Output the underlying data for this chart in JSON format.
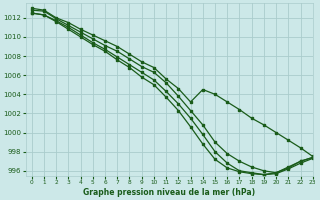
{
  "title": "Graphe pression niveau de la mer (hPa)",
  "background_color": "#cce8e8",
  "grid_color": "#aacccc",
  "line_color": "#1a5c1a",
  "xlim": [
    -0.5,
    23
  ],
  "ylim": [
    995.5,
    1013.5
  ],
  "yticks": [
    996,
    998,
    1000,
    1002,
    1004,
    1006,
    1008,
    1010,
    1012
  ],
  "xticks": [
    0,
    1,
    2,
    3,
    4,
    5,
    6,
    7,
    8,
    9,
    10,
    11,
    12,
    13,
    14,
    15,
    16,
    17,
    18,
    19,
    20,
    21,
    22,
    23
  ],
  "series": [
    [
      1013.0,
      1012.8,
      1012.0,
      1011.5,
      1010.8,
      1010.2,
      1009.6,
      1009.0,
      1008.2,
      1007.4,
      1006.8,
      1005.6,
      1004.6,
      1003.2,
      1004.5,
      1004.0,
      1003.2,
      1002.4,
      1001.5,
      1000.8,
      1000.0,
      999.2,
      998.4,
      997.5
    ],
    [
      1012.8,
      1012.7,
      1011.9,
      1011.2,
      1010.5,
      1009.8,
      1009.1,
      1008.5,
      1007.7,
      1006.9,
      1006.3,
      1005.2,
      1003.8,
      1002.3,
      1000.8,
      999.0,
      997.8,
      997.0,
      996.4,
      996.0,
      995.8,
      996.3,
      997.0,
      997.4
    ],
    [
      1012.5,
      1012.3,
      1011.7,
      1011.0,
      1010.2,
      1009.4,
      1008.7,
      1007.9,
      1007.1,
      1006.3,
      1005.5,
      1004.3,
      1003.0,
      1001.5,
      999.8,
      998.0,
      996.8,
      996.0,
      995.8,
      995.6,
      995.7,
      996.2,
      996.8,
      997.3
    ],
    [
      1012.5,
      1012.3,
      1011.6,
      1010.8,
      1010.0,
      1009.2,
      1008.5,
      1007.6,
      1006.8,
      1005.8,
      1005.0,
      1003.7,
      1002.3,
      1000.6,
      998.8,
      997.2,
      996.3,
      995.9,
      995.7,
      995.6,
      995.8,
      996.4,
      997.0,
      997.4
    ]
  ]
}
